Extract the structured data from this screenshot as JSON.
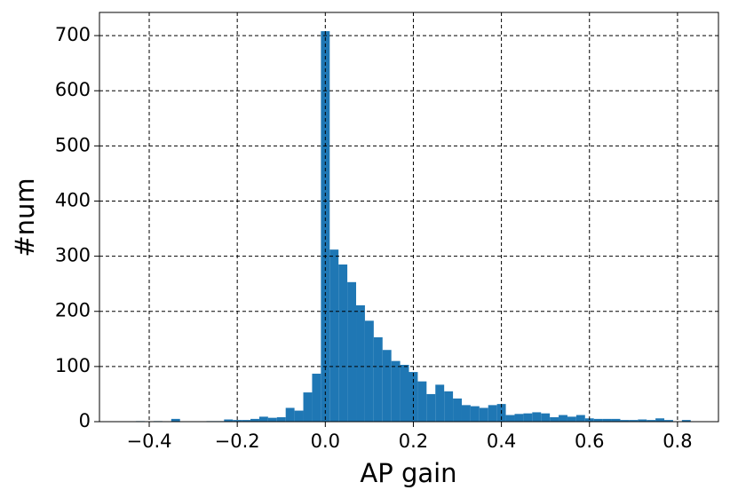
{
  "chart_data": {
    "type": "histogram",
    "xlabel": "AP gain",
    "ylabel": "#num",
    "bins": [
      -0.45,
      -0.43,
      -0.41,
      -0.39,
      -0.37,
      -0.35,
      -0.33,
      -0.31,
      -0.29,
      -0.27,
      -0.25,
      -0.23,
      -0.21,
      -0.19,
      -0.17,
      -0.15,
      -0.13,
      -0.11,
      -0.09,
      -0.07,
      -0.05,
      -0.03,
      -0.01,
      0.01,
      0.03,
      0.05,
      0.07,
      0.09,
      0.11,
      0.13,
      0.15,
      0.17,
      0.19,
      0.21,
      0.23,
      0.25,
      0.27,
      0.29,
      0.31,
      0.33,
      0.35,
      0.37,
      0.39,
      0.41,
      0.43,
      0.45,
      0.47,
      0.49,
      0.51,
      0.53,
      0.55,
      0.57,
      0.59,
      0.61,
      0.63,
      0.65,
      0.67,
      0.69,
      0.71,
      0.73,
      0.75,
      0.77,
      0.79,
      0.81,
      0.83
    ],
    "values": [
      0,
      1,
      0,
      1,
      0,
      5,
      0,
      0,
      0,
      1,
      1,
      4,
      3,
      3,
      5,
      9,
      7,
      8,
      25,
      20,
      53,
      87,
      708,
      312,
      285,
      253,
      211,
      183,
      153,
      130,
      110,
      103,
      90,
      73,
      50,
      67,
      55,
      42,
      30,
      28,
      25,
      30,
      32,
      12,
      14,
      15,
      17,
      15,
      8,
      12,
      9,
      12,
      6,
      5,
      5,
      5,
      3,
      3,
      4,
      3,
      6,
      3,
      0,
      3
    ],
    "color": "#1f77b4",
    "xlim": [
      -0.513,
      0.893
    ],
    "ylim": [
      0,
      742
    ],
    "xticks": [
      {
        "value": -0.4,
        "label": "−0.4"
      },
      {
        "value": -0.2,
        "label": "−0.2"
      },
      {
        "value": 0.0,
        "label": "0.0"
      },
      0.2,
      0.4,
      0.6,
      0.8
    ],
    "yticks": [
      0,
      100,
      200,
      300,
      400,
      500,
      600,
      700
    ],
    "grid": true
  }
}
